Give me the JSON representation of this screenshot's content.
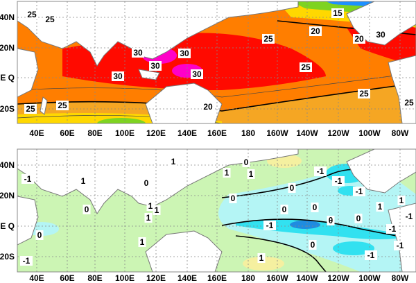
{
  "colors": {
    "red": "#ff0a00",
    "orange": "#ff7e00",
    "lt_orange": "#f5a623",
    "yellow": "#ffd800",
    "green": "#7ed321",
    "magenta": "#ff00c8",
    "blue": "#1e90ff",
    "anom_green": "#ccf5b4",
    "anom_lightblue": "#b4f5f5",
    "anom_cyan": "#32e1f0",
    "anom_blue": "#1f8ce0",
    "anom_yellow": "#f5f0a0"
  },
  "axes": {
    "lon_ticks": [
      "40E",
      "60E",
      "80E",
      "100E",
      "120E",
      "140E",
      "160E",
      "180",
      "160W",
      "140W",
      "120W",
      "100W",
      "80W"
    ],
    "lat_ticks": [
      "40N",
      "20N",
      "E Q",
      "20S"
    ]
  },
  "top_map": {
    "contour_labels": [
      "25",
      "25",
      "15",
      "20",
      "20",
      "30",
      "30",
      "30",
      "30",
      "30",
      "25",
      "30",
      "25",
      "25",
      "25",
      "25",
      "20",
      "25"
    ]
  },
  "bottom_map": {
    "contour_labels": [
      "1",
      "-1",
      "1",
      "0",
      "1",
      "0",
      "1",
      "-1",
      "0",
      "1",
      "1",
      "1",
      "0",
      "-1",
      "-1",
      "1",
      "1",
      "-1",
      "0",
      "0",
      "0",
      "0",
      "-1",
      "θ",
      "0",
      "-1",
      "1",
      "1",
      "0",
      "-1",
      "-1",
      "-1"
    ]
  }
}
